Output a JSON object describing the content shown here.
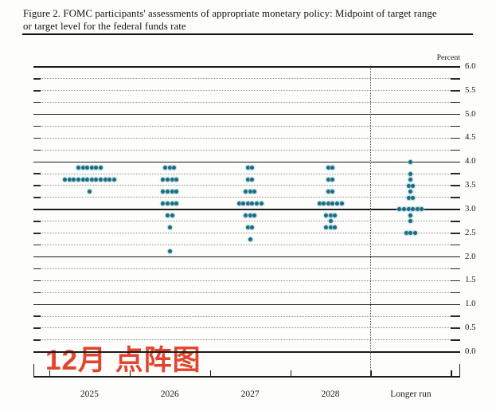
{
  "title": {
    "line1": "Figure 2. FOMC participants' assessments of appropriate monetary policy: Midpoint of target range",
    "line2": "or target level for the federal funds rate"
  },
  "axis": {
    "unit_label": "Percent",
    "y_tick_labels": [
      "6.0",
      "5.5",
      "5.0",
      "4.5",
      "4.0",
      "3.5",
      "3.0",
      "2.5",
      "2.0",
      "1.5",
      "1.0",
      "0.5",
      "0.0"
    ]
  },
  "annotation": {
    "text": "12月 点阵图",
    "color": "#e2452c"
  },
  "colors": {
    "dot": "#1d6a7e",
    "dot_halo": "#8cc8d6",
    "grid_solid": "#1b1b1b",
    "grid_dotted": "#909090"
  },
  "chart_data": {
    "type": "scatter",
    "subtype": "fomc-dot-plot",
    "title": "Figure 2. FOMC participants' assessments of appropriate monetary policy: Midpoint of target range or target level for the federal funds rate",
    "ylabel": "Percent",
    "ylim": [
      0.0,
      6.0
    ],
    "y_tick_step": 0.5,
    "grid": "solid lines at whole percents, dotted lines at quarter-percent steps",
    "legend_position": "none",
    "participants_per_column": 19,
    "categories": [
      "2025",
      "2026",
      "2027",
      "2028",
      "Longer run"
    ],
    "series": [
      {
        "name": "2025",
        "dots": [
          {
            "rate": 3.875,
            "count": 6
          },
          {
            "rate": 3.625,
            "count": 12
          },
          {
            "rate": 3.375,
            "count": 1
          }
        ]
      },
      {
        "name": "2026",
        "dots": [
          {
            "rate": 3.875,
            "count": 3
          },
          {
            "rate": 3.625,
            "count": 4
          },
          {
            "rate": 3.375,
            "count": 4
          },
          {
            "rate": 3.125,
            "count": 4
          },
          {
            "rate": 2.875,
            "count": 2
          },
          {
            "rate": 2.625,
            "count": 1
          },
          {
            "rate": 2.125,
            "count": 1
          }
        ]
      },
      {
        "name": "2027",
        "dots": [
          {
            "rate": 3.875,
            "count": 2
          },
          {
            "rate": 3.625,
            "count": 2
          },
          {
            "rate": 3.375,
            "count": 3
          },
          {
            "rate": 3.125,
            "count": 6
          },
          {
            "rate": 2.875,
            "count": 3
          },
          {
            "rate": 2.625,
            "count": 2
          },
          {
            "rate": 2.375,
            "count": 1
          }
        ]
      },
      {
        "name": "2028",
        "dots": [
          {
            "rate": 3.875,
            "count": 2
          },
          {
            "rate": 3.625,
            "count": 2
          },
          {
            "rate": 3.375,
            "count": 2
          },
          {
            "rate": 3.125,
            "count": 6
          },
          {
            "rate": 2.875,
            "count": 3
          },
          {
            "rate": 2.75,
            "count": 1
          },
          {
            "rate": 2.625,
            "count": 3
          }
        ]
      },
      {
        "name": "Longer run",
        "dots": [
          {
            "rate": 4.0,
            "count": 1
          },
          {
            "rate": 3.75,
            "count": 1
          },
          {
            "rate": 3.625,
            "count": 1
          },
          {
            "rate": 3.5,
            "count": 2
          },
          {
            "rate": 3.375,
            "count": 1
          },
          {
            "rate": 3.25,
            "count": 2
          },
          {
            "rate": 3.0,
            "count": 6
          },
          {
            "rate": 2.875,
            "count": 1
          },
          {
            "rate": 2.75,
            "count": 1
          },
          {
            "rate": 2.5,
            "count": 3
          }
        ]
      }
    ]
  }
}
